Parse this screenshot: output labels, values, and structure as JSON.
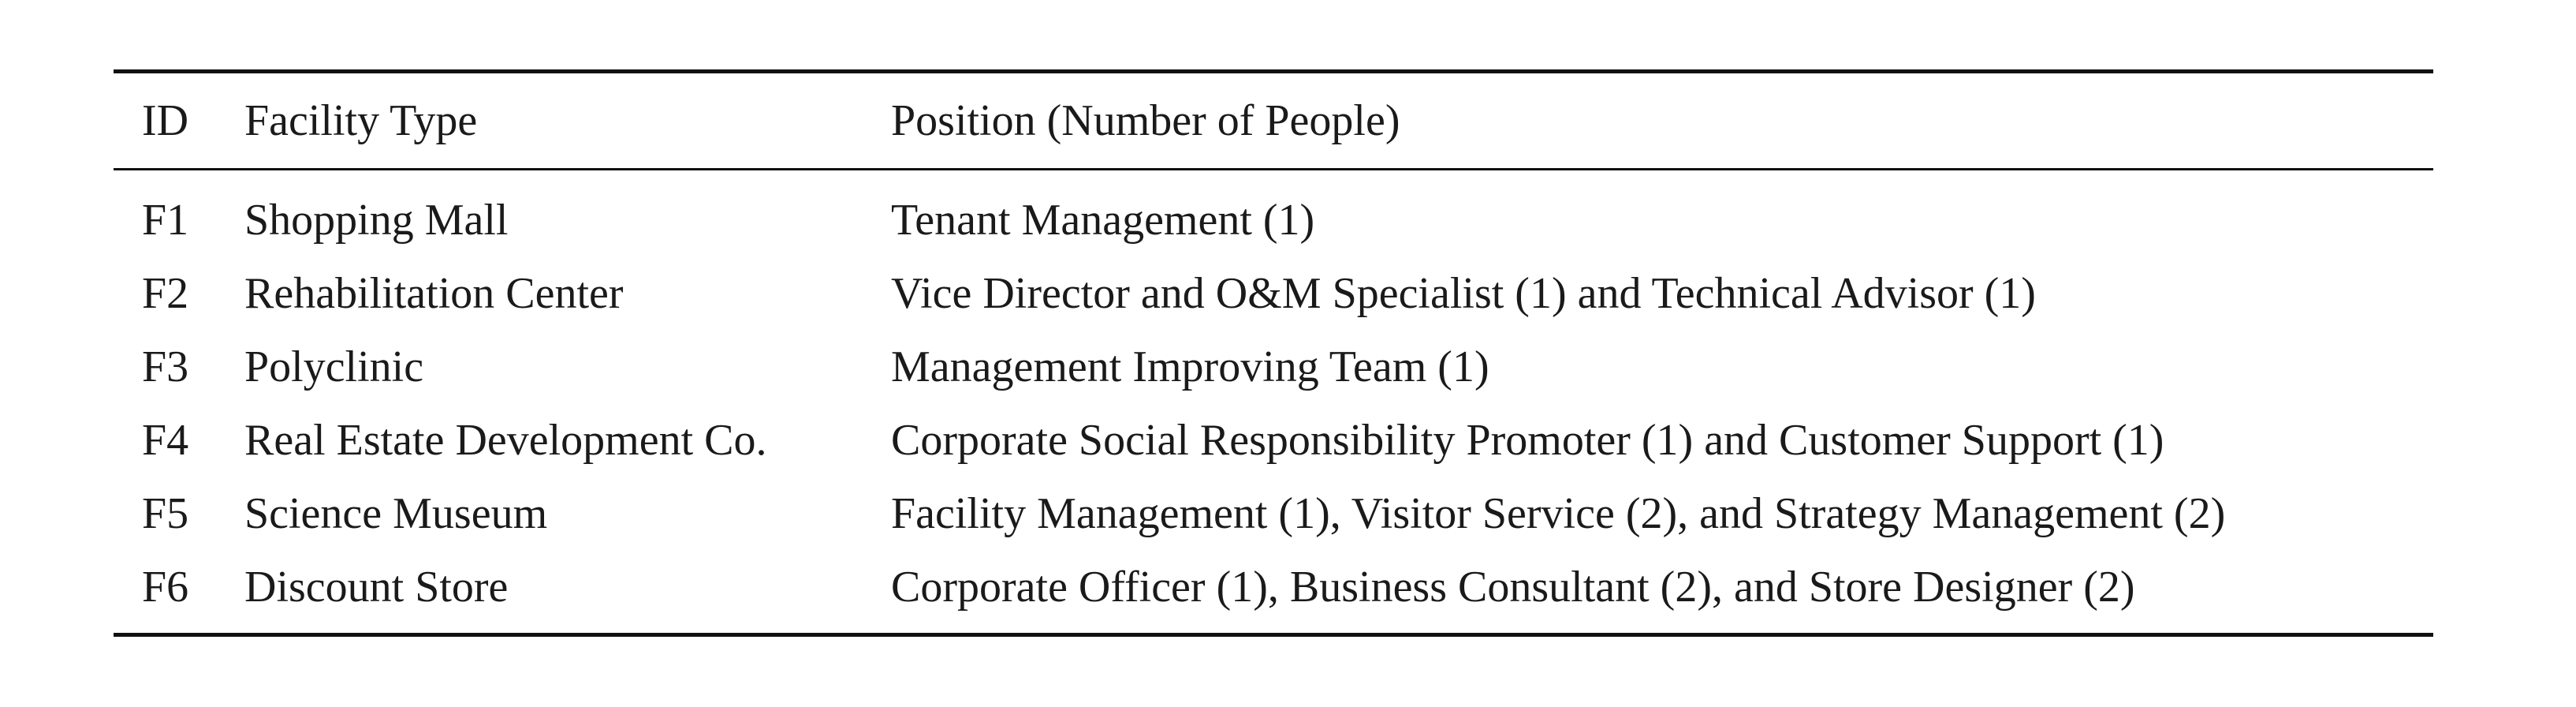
{
  "table": {
    "headers": {
      "id": "ID",
      "facility_type": "Facility Type",
      "position": "Position (Number of People)"
    },
    "rows": [
      {
        "id": "F1",
        "facility_type": "Shopping Mall",
        "position": "Tenant Management (1)"
      },
      {
        "id": "F2",
        "facility_type": "Rehabilitation Center",
        "position": "Vice Director and O&M Specialist (1) and Technical Advisor (1)"
      },
      {
        "id": "F3",
        "facility_type": "Polyclinic",
        "position": "Management Improving Team (1)"
      },
      {
        "id": "F4",
        "facility_type": "Real Estate Development Co.",
        "position": "Corporate Social Responsibility Promoter (1) and Customer Support (1)"
      },
      {
        "id": "F5",
        "facility_type": "Science Museum",
        "position": "Facility Management (1), Visitor Service (2), and Strategy Management (2)"
      },
      {
        "id": "F6",
        "facility_type": "Discount Store",
        "position": "Corporate Officer (1), Business Consultant (2), and Store Designer (2)"
      }
    ]
  }
}
